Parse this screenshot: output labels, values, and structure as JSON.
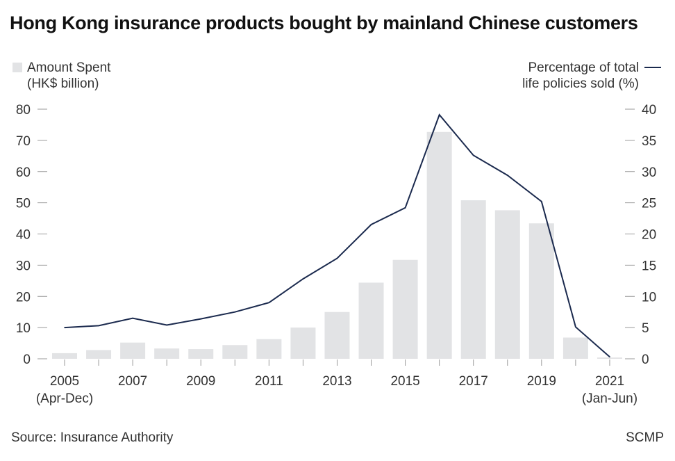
{
  "title": "Hong Kong insurance products bought by mainland Chinese customers",
  "legend": {
    "bars_label": "Amount Spent",
    "bars_unit": "(HK$ billion)",
    "line_label_1": "Percentage of total",
    "line_label_2": "life policies sold (%)"
  },
  "source": "Source: Insurance Authority",
  "brand": "SCMP",
  "colors": {
    "bar": "#e2e3e5",
    "line": "#1b2a4e",
    "axis_text": "#333333",
    "tick": "#999999"
  },
  "chart_data": {
    "type": "bar+line",
    "categories": [
      "2005",
      "2006",
      "2007",
      "2008",
      "2009",
      "2010",
      "2011",
      "2012",
      "2013",
      "2014",
      "2015",
      "2016",
      "2017",
      "2018",
      "2019",
      "2020",
      "2021"
    ],
    "x_tick_labels": [
      {
        "category": "2005",
        "line1": "2005",
        "line2": "(Apr-Dec)"
      },
      {
        "category": "2007",
        "line1": "2007",
        "line2": ""
      },
      {
        "category": "2009",
        "line1": "2009",
        "line2": ""
      },
      {
        "category": "2011",
        "line1": "2011",
        "line2": ""
      },
      {
        "category": "2013",
        "line1": "2013",
        "line2": ""
      },
      {
        "category": "2015",
        "line1": "2015",
        "line2": ""
      },
      {
        "category": "2017",
        "line1": "2017",
        "line2": ""
      },
      {
        "category": "2019",
        "line1": "2019",
        "line2": ""
      },
      {
        "category": "2021",
        "line1": "2021",
        "line2": "(Jan-Jun)"
      }
    ],
    "series": [
      {
        "name": "Amount Spent (HK$ billion)",
        "kind": "bar",
        "axis": "left",
        "values": [
          1.8,
          2.8,
          5.2,
          3.3,
          3.1,
          4.4,
          6.3,
          10.0,
          15.0,
          24.4,
          31.7,
          72.7,
          50.8,
          47.6,
          43.4,
          6.8,
          0.4
        ]
      },
      {
        "name": "Percentage of total life policies sold (%)",
        "kind": "line",
        "axis": "right",
        "values": [
          5.0,
          5.3,
          6.5,
          5.4,
          6.4,
          7.5,
          9.0,
          12.8,
          16.1,
          21.5,
          24.2,
          39.1,
          32.6,
          29.4,
          25.2,
          5.1,
          0.3
        ]
      }
    ],
    "y_left": {
      "ticks": [
        0,
        10,
        20,
        30,
        40,
        50,
        60,
        70,
        80
      ],
      "ylim": [
        0,
        80
      ]
    },
    "y_right": {
      "ticks": [
        0,
        5,
        10,
        15,
        20,
        25,
        30,
        35,
        40
      ],
      "ylim": [
        0,
        40
      ]
    },
    "grid": false
  }
}
